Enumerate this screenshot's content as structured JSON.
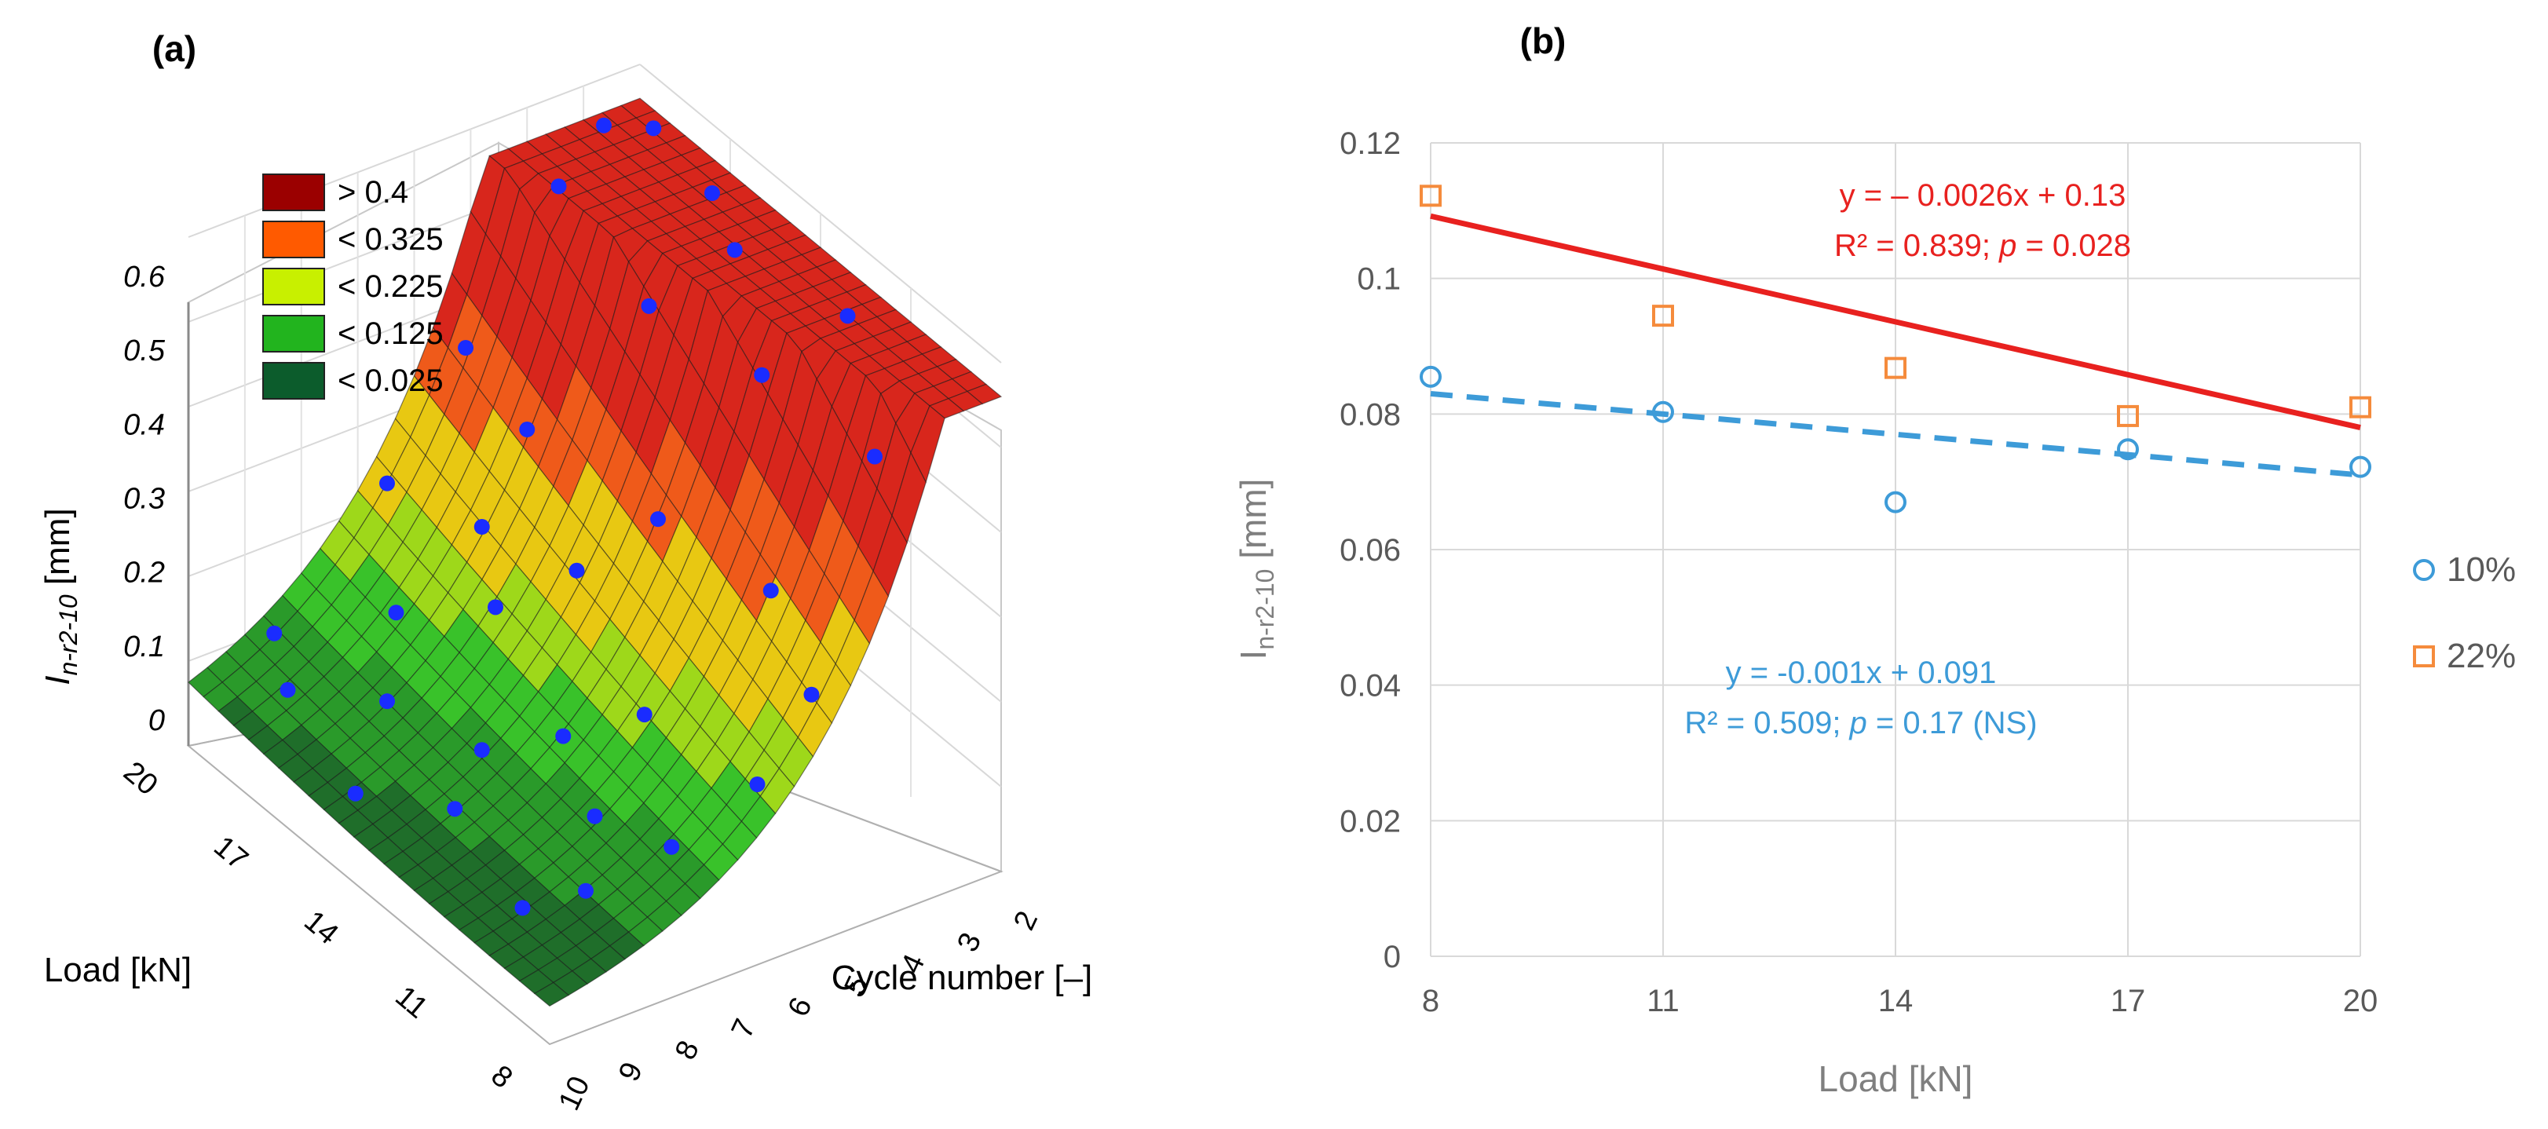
{
  "panel_a": {
    "label": "(a)",
    "zlabel_main": "I",
    "zlabel_sub": "n-r2-10",
    "zlabel_unit": " [mm]",
    "zticks": [
      "0",
      "0.1",
      "0.2",
      "0.3",
      "0.4",
      "0.5",
      "0.6"
    ],
    "load_label": "Load [kN]",
    "load_ticks": [
      "20",
      "17",
      "14",
      "11",
      "8"
    ],
    "cycle_label": "Cycle number [–]",
    "cycle_ticks": [
      "10",
      "9",
      "8",
      "7",
      "6",
      "5",
      "4",
      "3",
      "2"
    ],
    "legend": [
      {
        "label": "> 0.4",
        "color": "#9b0000"
      },
      {
        "label": "< 0.325",
        "color": "#ff5a00"
      },
      {
        "label": "< 0.225",
        "color": "#c8f000"
      },
      {
        "label": "< 0.125",
        "color": "#22b41e"
      },
      {
        "label": "< 0.025",
        "color": "#0c5c2c"
      }
    ]
  },
  "panel_b": {
    "label": "(b)"
  },
  "chart_data": [
    {
      "type": "surface",
      "zlabel": "In-r2-10 [mm]",
      "xlabel": "Cycle number [–]",
      "ylabel": "Load [kN]",
      "x_range": [
        2,
        10
      ],
      "y_range": [
        8,
        20
      ],
      "z_range": [
        0,
        0.6
      ],
      "x_ticks": [
        2,
        3,
        4,
        5,
        6,
        7,
        8,
        9,
        10
      ],
      "y_ticks": [
        8,
        11,
        14,
        17,
        20
      ],
      "z_ticks": [
        0,
        0.1,
        0.2,
        0.3,
        0.4,
        0.5,
        0.6
      ],
      "legend": [
        "> 0.4",
        "< 0.325",
        "< 0.225",
        "< 0.125",
        "< 0.025"
      ]
    },
    {
      "type": "scatter",
      "xlabel": "Load [kN]",
      "ylabel": "In-r2-10 [mm]",
      "xlim": [
        8,
        20
      ],
      "ylim": [
        0,
        0.12
      ],
      "xticks": [
        8,
        11,
        14,
        17,
        20
      ],
      "yticks": [
        "0",
        "0.02",
        "0.04",
        "0.06",
        "0.08",
        "0.1",
        "0.12"
      ],
      "grid": true,
      "legend_position": "right",
      "series": [
        {
          "name": "10%",
          "color": "#3d9bd8",
          "marker": "circle",
          "x": [
            8,
            11,
            14,
            17,
            20
          ],
          "y": [
            0.0855,
            0.0803,
            0.067,
            0.0748,
            0.0722
          ],
          "fit": {
            "slope": -0.001,
            "intercept": 0.091,
            "style": "dashed"
          },
          "equation": "y = -0.001x + 0.091",
          "r2_text": "R² = 0.509; ",
          "p_text": " = 0.17 (NS)"
        },
        {
          "name": "22%",
          "color": "#f58b3c",
          "line_color": "#e8211f",
          "marker": "square",
          "x": [
            8,
            11,
            14,
            17,
            20
          ],
          "y": [
            0.1122,
            0.0945,
            0.0868,
            0.0797,
            0.081
          ],
          "fit": {
            "slope": -0.0026,
            "intercept": 0.13,
            "style": "solid"
          },
          "equation": "y = – 0.0026x + 0.13",
          "r2_text": "R² = 0.839; ",
          "p_text": " = 0.028"
        }
      ],
      "p_symbol": "p"
    }
  ]
}
